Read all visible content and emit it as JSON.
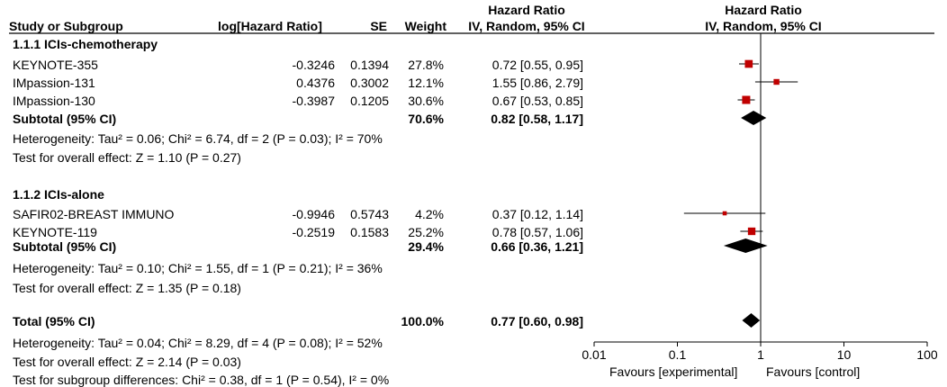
{
  "header": {
    "col_study": "Study or Subgroup",
    "col_loghr": "log[Hazard Ratio]",
    "col_se": "SE",
    "col_weight": "Weight",
    "col_hr_top": "Hazard Ratio",
    "col_hr_bottom": "IV, Random, 95% CI",
    "plot_hr_top": "Hazard Ratio",
    "plot_hr_bottom": "IV, Random, 95% CI"
  },
  "groups": [
    {
      "title": "1.1.1 ICIs-chemotherapy",
      "studies": [
        {
          "name": "KEYNOTE-355",
          "loghr": "-0.3246",
          "se": "0.1394",
          "weight": "27.8%",
          "ci_text": "0.72 [0.55, 0.95]"
        },
        {
          "name": "IMpassion-131",
          "loghr": "0.4376",
          "se": "0.3002",
          "weight": "12.1%",
          "ci_text": "1.55 [0.86, 2.79]"
        },
        {
          "name": "IMpassion-130",
          "loghr": "-0.3987",
          "se": "0.1205",
          "weight": "30.6%",
          "ci_text": "0.67 [0.53, 0.85]"
        }
      ],
      "subtotal": {
        "label": "Subtotal (95% CI)",
        "weight": "70.6%",
        "ci_text": "0.82 [0.58, 1.17]"
      },
      "heterogeneity": "Heterogeneity: Tau² = 0.06; Chi² = 6.74, df = 2 (P = 0.03); I² = 70%",
      "overall": "Test for overall effect: Z = 1.10 (P = 0.27)"
    },
    {
      "title": "1.1.2 ICIs-alone",
      "studies": [
        {
          "name": "SAFIR02-BREAST IMMUNO",
          "loghr": "-0.9946",
          "se": "0.5743",
          "weight": "4.2%",
          "ci_text": "0.37 [0.12, 1.14]"
        },
        {
          "name": "KEYNOTE-119",
          "loghr": "-0.2519",
          "se": "0.1583",
          "weight": "25.2%",
          "ci_text": "0.78 [0.57, 1.06]"
        }
      ],
      "subtotal": {
        "label": "Subtotal (95% CI)",
        "weight": "29.4%",
        "ci_text": "0.66 [0.36, 1.21]"
      },
      "heterogeneity": "Heterogeneity: Tau² = 0.10; Chi² = 1.55, df = 1 (P = 0.21); I² = 36%",
      "overall": "Test for overall effect: Z = 1.35 (P = 0.18)"
    }
  ],
  "total": {
    "label": "Total (95% CI)",
    "weight": "100.0%",
    "ci_text": "0.77 [0.60, 0.98]",
    "heterogeneity": "Heterogeneity: Tau² = 0.04; Chi² = 8.29, df = 4 (P = 0.08); I² = 52%",
    "overall": "Test for overall effect: Z = 2.14 (P = 0.03)",
    "subgroup": "Test for subgroup differences: Chi² = 0.38, df = 1 (P = 0.54), I² = 0%"
  },
  "axis": {
    "ticks": [
      "0.01",
      "0.1",
      "1",
      "10",
      "100"
    ],
    "favours_left": "Favours [experimental]",
    "favours_right": "Favours [control]"
  },
  "colors": {
    "study_marker": "#c00000",
    "diamond": "#000000"
  },
  "chart_data": {
    "type": "forest",
    "x_scale": "log",
    "xlim": [
      0.01,
      100
    ],
    "reference_line": 1,
    "studies": [
      {
        "name": "KEYNOTE-355",
        "hr": 0.72,
        "lower": 0.55,
        "upper": 0.95,
        "weight": 27.8
      },
      {
        "name": "IMpassion-131",
        "hr": 1.55,
        "lower": 0.86,
        "upper": 2.79,
        "weight": 12.1
      },
      {
        "name": "IMpassion-130",
        "hr": 0.67,
        "lower": 0.53,
        "upper": 0.85,
        "weight": 30.6
      },
      {
        "name": "SAFIR02-BREAST IMMUNO",
        "hr": 0.37,
        "lower": 0.12,
        "upper": 1.14,
        "weight": 4.2
      },
      {
        "name": "KEYNOTE-119",
        "hr": 0.78,
        "lower": 0.57,
        "upper": 1.06,
        "weight": 25.2
      }
    ],
    "summaries": [
      {
        "name": "Subtotal 1.1.1",
        "hr": 0.82,
        "lower": 0.58,
        "upper": 1.17
      },
      {
        "name": "Subtotal 1.1.2",
        "hr": 0.66,
        "lower": 0.36,
        "upper": 1.21
      },
      {
        "name": "Total",
        "hr": 0.77,
        "lower": 0.6,
        "upper": 0.98
      }
    ]
  }
}
